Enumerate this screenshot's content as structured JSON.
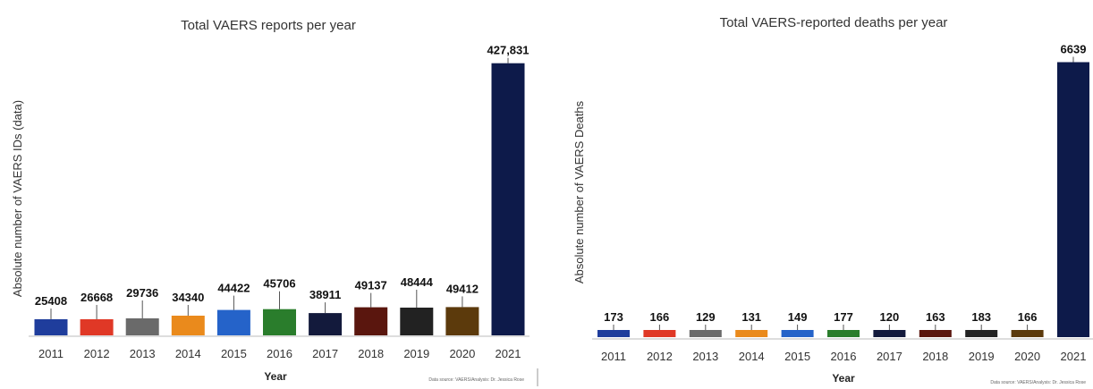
{
  "colors": [
    "#1f3d9c",
    "#e03826",
    "#6a6a6a",
    "#ea8a1c",
    "#2563c9",
    "#2a7d2c",
    "#131a3c",
    "#5a160e",
    "#222222",
    "#5c3a0c",
    "#0d1a4a"
  ],
  "chart_data": [
    {
      "type": "bar",
      "title": "Total VAERS reports per year",
      "xlabel": "Year",
      "ylabel": "Absolute number of VAERS IDs (data)",
      "categories": [
        "2011",
        "2012",
        "2013",
        "2014",
        "2015",
        "2016",
        "2017",
        "2018",
        "2019",
        "2020",
        "2021"
      ],
      "values": [
        25408,
        26668,
        29736,
        34340,
        44422,
        45706,
        38911,
        49137,
        48444,
        49412,
        427831
      ],
      "value_labels": [
        "25408",
        "26668",
        "29736",
        "34340",
        "44422",
        "45706",
        "38911",
        "49137",
        "48444",
        "49412",
        "427,831"
      ],
      "ylim": [
        0,
        440000
      ],
      "grid": false,
      "source": "Data source: VAERS/Analysis: Dr. Jessica Rose"
    },
    {
      "type": "bar",
      "title": "Total VAERS-reported deaths per year",
      "xlabel": "Year",
      "ylabel": "Absolute number of VAERS Deaths",
      "categories": [
        "2011",
        "2012",
        "2013",
        "2014",
        "2015",
        "2016",
        "2017",
        "2018",
        "2019",
        "2020",
        "2021"
      ],
      "values": [
        173,
        166,
        129,
        131,
        149,
        177,
        120,
        163,
        183,
        166,
        6639
      ],
      "value_labels": [
        "173",
        "166",
        "129",
        "131",
        "149",
        "177",
        "120",
        "163",
        "183",
        "166",
        "6639"
      ],
      "ylim": [
        0,
        6800
      ],
      "grid": false,
      "source": "Data source: VAERS/Analysis: Dr. Jessica Rose"
    }
  ]
}
